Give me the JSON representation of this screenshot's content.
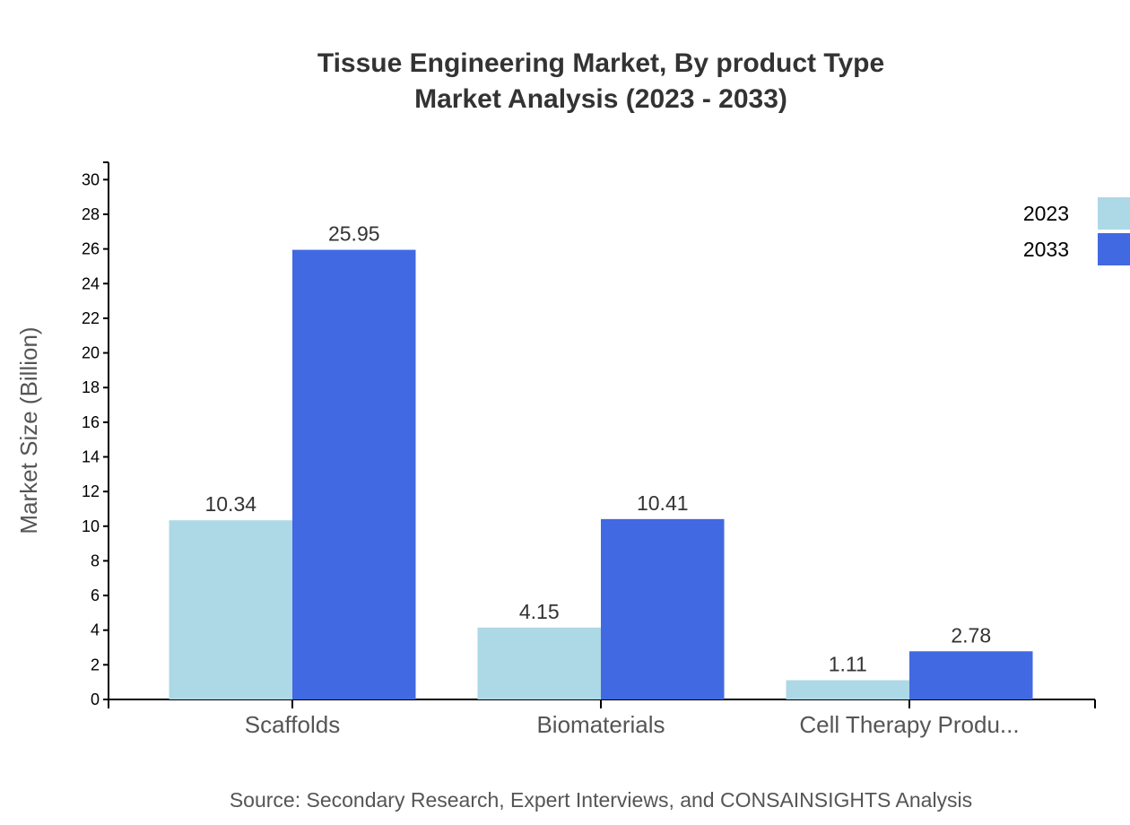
{
  "chart_data": {
    "type": "bar",
    "title": "Tissue Engineering Market, By product Type",
    "subtitle": "Market Analysis (2023 - 2033)",
    "xlabel": "",
    "ylabel": "Market Size (Billion)",
    "ylim": [
      0,
      31
    ],
    "yticks": [
      0,
      2,
      4,
      6,
      8,
      10,
      12,
      14,
      16,
      18,
      20,
      22,
      24,
      26,
      28,
      30
    ],
    "grid": false,
    "legend_position": "top-right",
    "categories": [
      "Scaffolds",
      "Biomaterials",
      "Cell Therapy Produ..."
    ],
    "series": [
      {
        "name": "2023",
        "color": "#add8e6",
        "values": [
          10.34,
          4.15,
          1.11
        ]
      },
      {
        "name": "2033",
        "color": "#4169e1",
        "values": [
          25.95,
          10.41,
          2.78
        ]
      }
    ],
    "source": "Source: Secondary Research, Expert Interviews, and CONSAINSIGHTS Analysis"
  }
}
